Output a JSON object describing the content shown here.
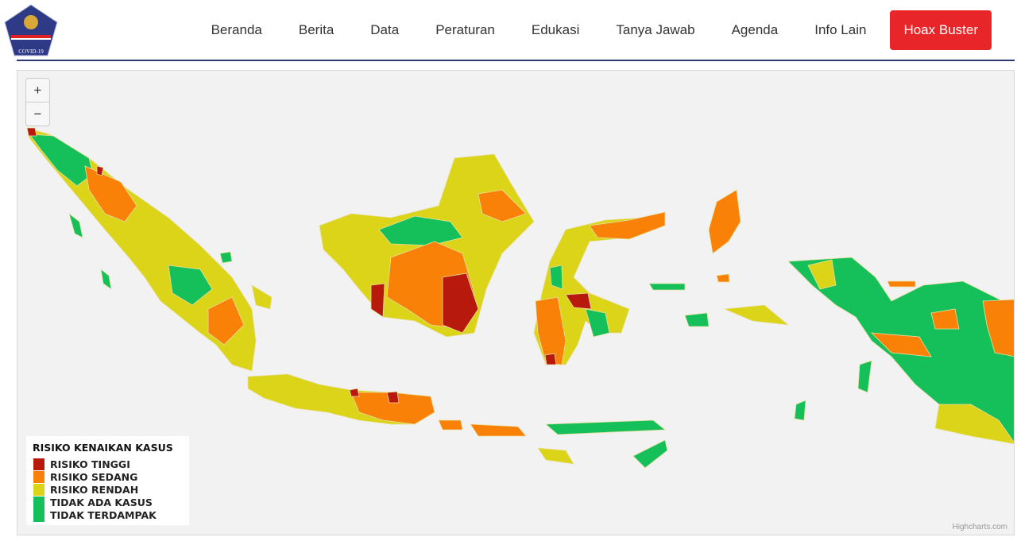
{
  "header": {
    "logo_text": "COVID-19",
    "nav": [
      "Beranda",
      "Berita",
      "Data",
      "Peraturan",
      "Edukasi",
      "Tanya Jawab",
      "Agenda",
      "Info Lain"
    ],
    "hoax_button": "Hoax Buster"
  },
  "map": {
    "zoom_in": "+",
    "zoom_out": "−",
    "legend": {
      "title": "RISIKO KENAIKAN KASUS",
      "items": [
        {
          "label": "RISIKO TINGGI",
          "color": "#b8190d"
        },
        {
          "label": "RISIKO SEDANG",
          "color": "#f98107"
        },
        {
          "label": "RISIKO RENDAH",
          "color": "#dcd418"
        },
        {
          "label": "TIDAK ADA KASUS",
          "color": "#15c05a"
        },
        {
          "label": "TIDAK TERDAMPAK",
          "color": "#15c05a"
        }
      ]
    },
    "credit": "Highcharts.com"
  }
}
